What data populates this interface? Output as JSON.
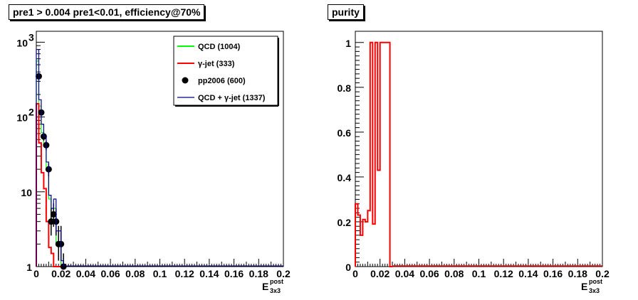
{
  "chart_data": [
    {
      "type": "histogram",
      "title": "pre1 > 0.004  pre1<0.01, efficiency@70%",
      "yscale": "log",
      "xlim": [
        0,
        0.2
      ],
      "ylim": [
        1,
        1400
      ],
      "xticks": [
        "0",
        "0.02",
        "0.04",
        "0.06",
        "0.08",
        "0.1",
        "0.12",
        "0.14",
        "0.16",
        "0.18",
        "0.2"
      ],
      "yticks": [
        {
          "value": 1,
          "base": "1",
          "exp": ""
        },
        {
          "value": 10,
          "base": "10",
          "exp": ""
        },
        {
          "value": 100,
          "base": "10",
          "exp": "2"
        },
        {
          "value": 1000,
          "base": "10",
          "exp": "3"
        }
      ],
      "xlabel": {
        "base": "E",
        "sup": "post",
        "sub": "3x3"
      },
      "legend_position": "top-right",
      "bin_width": 0.002,
      "series": [
        {
          "name": "QCD (1004)",
          "color": "#00ff00",
          "style": "step",
          "values": [
            560,
            140,
            62,
            42,
            20,
            8,
            4,
            6,
            2,
            2,
            1
          ]
        },
        {
          "name": "γ-jet (333)",
          "color": "#ff0000",
          "style": "step",
          "values": [
            150,
            45,
            18,
            11,
            4,
            1.8,
            1.5,
            1,
            1,
            1,
            1
          ]
        },
        {
          "name": "pp2006 (600)",
          "color": "#000000",
          "style": "points",
          "x": [
            0.002,
            0.004,
            0.006,
            0.008,
            0.01,
            0.012,
            0.014,
            0.016,
            0.018,
            0.02,
            0.022
          ],
          "values": [
            350,
            115,
            55,
            42,
            20,
            4,
            5,
            4,
            2,
            2,
            1
          ],
          "err_low": [
            330,
            105,
            48,
            36,
            16,
            2.6,
            3.4,
            2.6,
            1.2,
            1.2,
            1
          ],
          "err_high": [
            370,
            125,
            62,
            48,
            24,
            6,
            7,
            6,
            3.5,
            3.5,
            1.5
          ]
        },
        {
          "name": "QCD + γ-jet (1337)",
          "color": "#000080",
          "style": "step",
          "values": [
            800,
            170,
            80,
            55,
            25,
            9,
            6,
            8,
            3,
            3,
            1.2
          ]
        }
      ]
    },
    {
      "type": "histogram",
      "title": "purity",
      "xlim": [
        0,
        0.2
      ],
      "ylim": [
        0,
        1.05
      ],
      "xticks": [
        "0",
        "0.02",
        "0.04",
        "0.06",
        "0.08",
        "0.1",
        "0.12",
        "0.14",
        "0.16",
        "0.18",
        "0.2"
      ],
      "yticks": [
        "0",
        "0.2",
        "0.4",
        "0.6",
        "0.8",
        "1"
      ],
      "xlabel": {
        "base": "E",
        "sup": "post",
        "sub": "3x3"
      },
      "bin_width": 0.002,
      "series": [
        {
          "name": "",
          "color": "#ff0000",
          "style": "step",
          "values": [
            0.28,
            0.23,
            0.14,
            0.21,
            0.2,
            0.25,
            1.0,
            0.19,
            1.0,
            0.43,
            1.0,
            1.0,
            1.0,
            1.0,
            0
          ]
        }
      ]
    }
  ]
}
